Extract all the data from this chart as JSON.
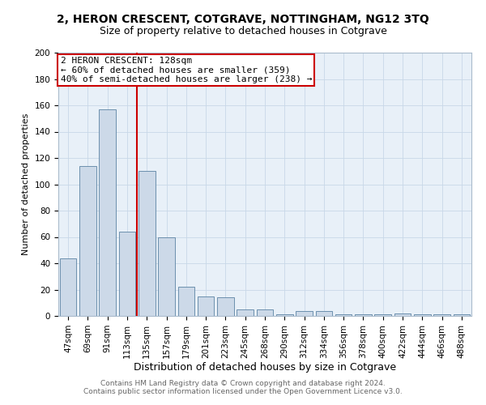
{
  "title": "2, HERON CRESCENT, COTGRAVE, NOTTINGHAM, NG12 3TQ",
  "subtitle": "Size of property relative to detached houses in Cotgrave",
  "xlabel": "Distribution of detached houses by size in Cotgrave",
  "ylabel": "Number of detached properties",
  "annotation_line1": "2 HERON CRESCENT: 128sqm",
  "annotation_line2": "← 60% of detached houses are smaller (359)",
  "annotation_line3": "40% of semi-detached houses are larger (238) →",
  "footer_line1": "Contains HM Land Registry data © Crown copyright and database right 2024.",
  "footer_line2": "Contains public sector information licensed under the Open Government Licence v3.0.",
  "bar_color": "#ccd9e8",
  "bar_edge_color": "#5b82a3",
  "vline_color": "#cc0000",
  "annotation_box_edge_color": "#cc0000",
  "grid_color": "#c8d8e8",
  "background_color": "#e8f0f8",
  "categories": [
    "47sqm",
    "69sqm",
    "91sqm",
    "113sqm",
    "135sqm",
    "157sqm",
    "179sqm",
    "201sqm",
    "223sqm",
    "245sqm",
    "268sqm",
    "290sqm",
    "312sqm",
    "334sqm",
    "356sqm",
    "378sqm",
    "400sqm",
    "422sqm",
    "444sqm",
    "466sqm",
    "488sqm"
  ],
  "values": [
    44,
    114,
    157,
    64,
    110,
    60,
    22,
    15,
    14,
    5,
    5,
    1,
    4,
    4,
    1,
    1,
    1,
    2,
    1,
    1,
    1
  ],
  "ylim": [
    0,
    200
  ],
  "yticks": [
    0,
    20,
    40,
    60,
    80,
    100,
    120,
    140,
    160,
    180,
    200
  ],
  "vline_x_index": 3.5,
  "title_fontsize": 10,
  "subtitle_fontsize": 9,
  "ylabel_fontsize": 8,
  "xlabel_fontsize": 9,
  "tick_fontsize": 7.5,
  "annotation_fontsize": 8,
  "footer_fontsize": 6.5,
  "footer_color": "#666666"
}
